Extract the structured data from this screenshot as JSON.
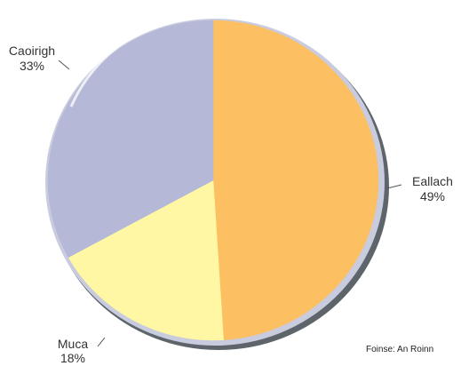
{
  "chart_data": {
    "type": "pie",
    "title": "",
    "slices": [
      {
        "label": "Eallach",
        "value": 49,
        "display": "49%",
        "color": "#fcbf62"
      },
      {
        "label": "Muca",
        "value": 18,
        "display": "18%",
        "color": "#fff7a3"
      },
      {
        "label": "Caoirigh",
        "value": 33,
        "display": "33%",
        "color": "#b5b8d6"
      }
    ],
    "source": "Foinse: An Roinn"
  }
}
